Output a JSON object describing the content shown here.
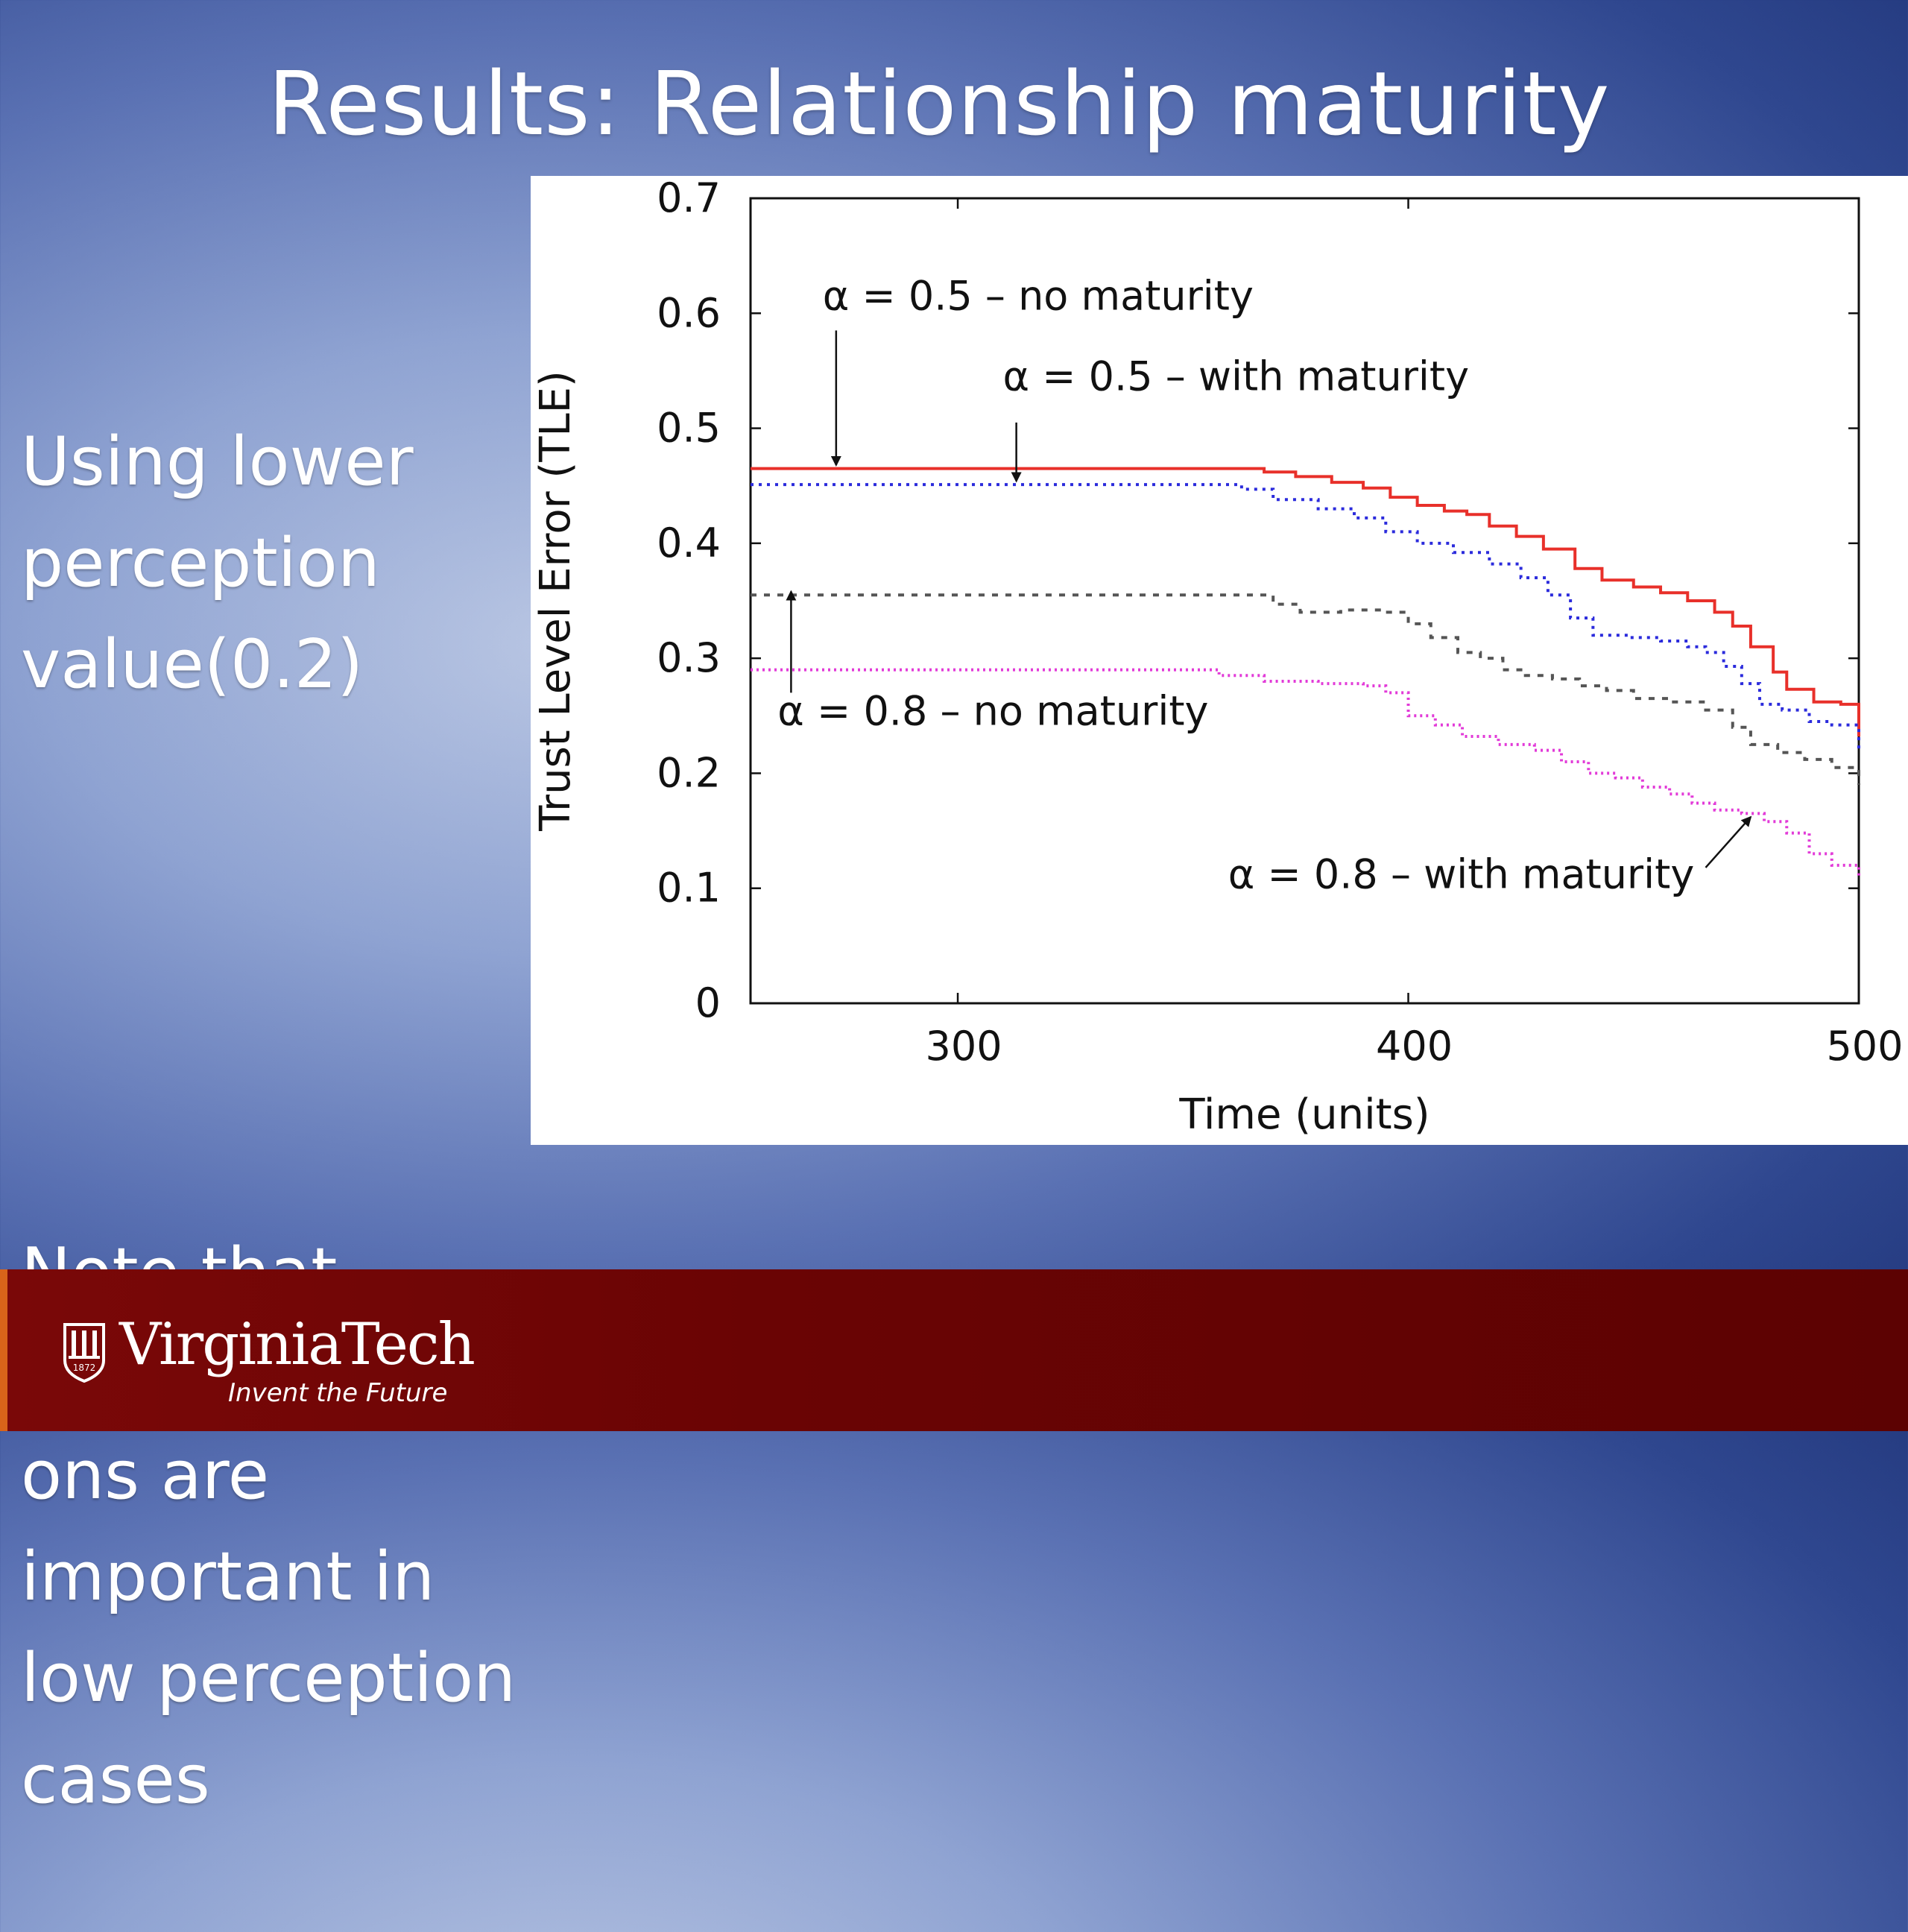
{
  "slide": {
    "title": "Results: Relationship maturity",
    "left_text": [
      "Using lower\nperception\nvalue(0.2)",
      "Note that\nrecommendati\nons are\nimportant in\nlow perception\ncases"
    ]
  },
  "footer": {
    "logo_word": "VirginiaTech",
    "logo_tagline": "Invent the Future",
    "logo_year": "1872"
  },
  "colors": {
    "series_a05_no": "#e8302a",
    "series_a05_with": "#2b2bdc",
    "series_a08_no": "#555555",
    "series_a08_with": "#e23ad8"
  },
  "chart_data": {
    "type": "line",
    "xlabel": "Time (units)",
    "ylabel": "Trust Level Error (TLE)",
    "xlim": [
      254,
      500
    ],
    "ylim": [
      0,
      0.7
    ],
    "x_ticks": [
      300,
      400,
      500
    ],
    "y_ticks": [
      "0",
      "0.1",
      "0.2",
      "0.3",
      "0.4",
      "0.5",
      "0.6",
      "0.7"
    ],
    "grid": false,
    "series": [
      {
        "key": "a05_no",
        "style": "solid",
        "points": [
          [
            254,
            0.465
          ],
          [
            362,
            0.465
          ],
          [
            368,
            0.462
          ],
          [
            375,
            0.458
          ],
          [
            383,
            0.453
          ],
          [
            390,
            0.448
          ],
          [
            396,
            0.44
          ],
          [
            402,
            0.433
          ],
          [
            408,
            0.428
          ],
          [
            413,
            0.425
          ],
          [
            418,
            0.415
          ],
          [
            424,
            0.406
          ],
          [
            430,
            0.395
          ],
          [
            437,
            0.378
          ],
          [
            443,
            0.368
          ],
          [
            450,
            0.362
          ],
          [
            456,
            0.357
          ],
          [
            462,
            0.35
          ],
          [
            468,
            0.34
          ],
          [
            472,
            0.328
          ],
          [
            476,
            0.31
          ],
          [
            481,
            0.288
          ],
          [
            484,
            0.273
          ],
          [
            490,
            0.262
          ],
          [
            496,
            0.26
          ],
          [
            500,
            0.232
          ]
        ]
      },
      {
        "key": "a05_with",
        "style": "dotted",
        "points": [
          [
            254,
            0.451
          ],
          [
            356,
            0.451
          ],
          [
            363,
            0.447
          ],
          [
            370,
            0.438
          ],
          [
            380,
            0.43
          ],
          [
            388,
            0.422
          ],
          [
            395,
            0.41
          ],
          [
            402,
            0.4
          ],
          [
            410,
            0.392
          ],
          [
            418,
            0.382
          ],
          [
            425,
            0.37
          ],
          [
            431,
            0.355
          ],
          [
            436,
            0.335
          ],
          [
            441,
            0.32
          ],
          [
            449,
            0.318
          ],
          [
            456,
            0.315
          ],
          [
            462,
            0.31
          ],
          [
            466,
            0.305
          ],
          [
            470,
            0.293
          ],
          [
            474,
            0.278
          ],
          [
            478,
            0.26
          ],
          [
            483,
            0.255
          ],
          [
            489,
            0.245
          ],
          [
            494,
            0.242
          ],
          [
            500,
            0.22
          ]
        ]
      },
      {
        "key": "a08_no",
        "style": "dashed",
        "points": [
          [
            254,
            0.355
          ],
          [
            365,
            0.355
          ],
          [
            370,
            0.347
          ],
          [
            376,
            0.34
          ],
          [
            385,
            0.342
          ],
          [
            395,
            0.34
          ],
          [
            400,
            0.33
          ],
          [
            405,
            0.318
          ],
          [
            411,
            0.305
          ],
          [
            416,
            0.3
          ],
          [
            421,
            0.29
          ],
          [
            426,
            0.285
          ],
          [
            432,
            0.282
          ],
          [
            438,
            0.276
          ],
          [
            444,
            0.272
          ],
          [
            450,
            0.265
          ],
          [
            458,
            0.262
          ],
          [
            466,
            0.255
          ],
          [
            472,
            0.24
          ],
          [
            476,
            0.225
          ],
          [
            482,
            0.218
          ],
          [
            488,
            0.212
          ],
          [
            494,
            0.205
          ],
          [
            500,
            0.19
          ]
        ]
      },
      {
        "key": "a08_with",
        "style": "dotted",
        "points": [
          [
            254,
            0.29
          ],
          [
            350,
            0.29
          ],
          [
            358,
            0.285
          ],
          [
            368,
            0.28
          ],
          [
            380,
            0.278
          ],
          [
            390,
            0.276
          ],
          [
            395,
            0.27
          ],
          [
            400,
            0.25
          ],
          [
            406,
            0.242
          ],
          [
            412,
            0.232
          ],
          [
            420,
            0.225
          ],
          [
            428,
            0.22
          ],
          [
            434,
            0.21
          ],
          [
            440,
            0.2
          ],
          [
            446,
            0.196
          ],
          [
            452,
            0.188
          ],
          [
            458,
            0.182
          ],
          [
            463,
            0.174
          ],
          [
            468,
            0.168
          ],
          [
            474,
            0.165
          ],
          [
            479,
            0.158
          ],
          [
            484,
            0.148
          ],
          [
            489,
            0.13
          ],
          [
            494,
            0.12
          ],
          [
            500,
            0.11
          ]
        ]
      }
    ],
    "annotations": [
      {
        "key": "ann_a05_no",
        "text": "α = 0.5 – no maturity",
        "text_x": 270,
        "text_y": 0.603,
        "arrow_from": [
          273,
          0.585
        ],
        "arrow_to": [
          273,
          0.468
        ]
      },
      {
        "key": "ann_a05_with",
        "text": "α = 0.5 – with maturity",
        "text_x": 310,
        "text_y": 0.533,
        "arrow_from": [
          313,
          0.505
        ],
        "arrow_to": [
          313,
          0.454
        ]
      },
      {
        "key": "ann_a08_no",
        "text": "α = 0.8 – no maturity",
        "text_x": 260,
        "text_y": 0.242,
        "arrow_from": [
          263,
          0.27
        ],
        "arrow_to": [
          263,
          0.358
        ]
      },
      {
        "key": "ann_a08_with",
        "text": "α = 0.8 – with maturity",
        "text_x": 360,
        "text_y": 0.1,
        "arrow_from": [
          466,
          0.118
        ],
        "arrow_to": [
          476,
          0.162
        ]
      }
    ]
  }
}
